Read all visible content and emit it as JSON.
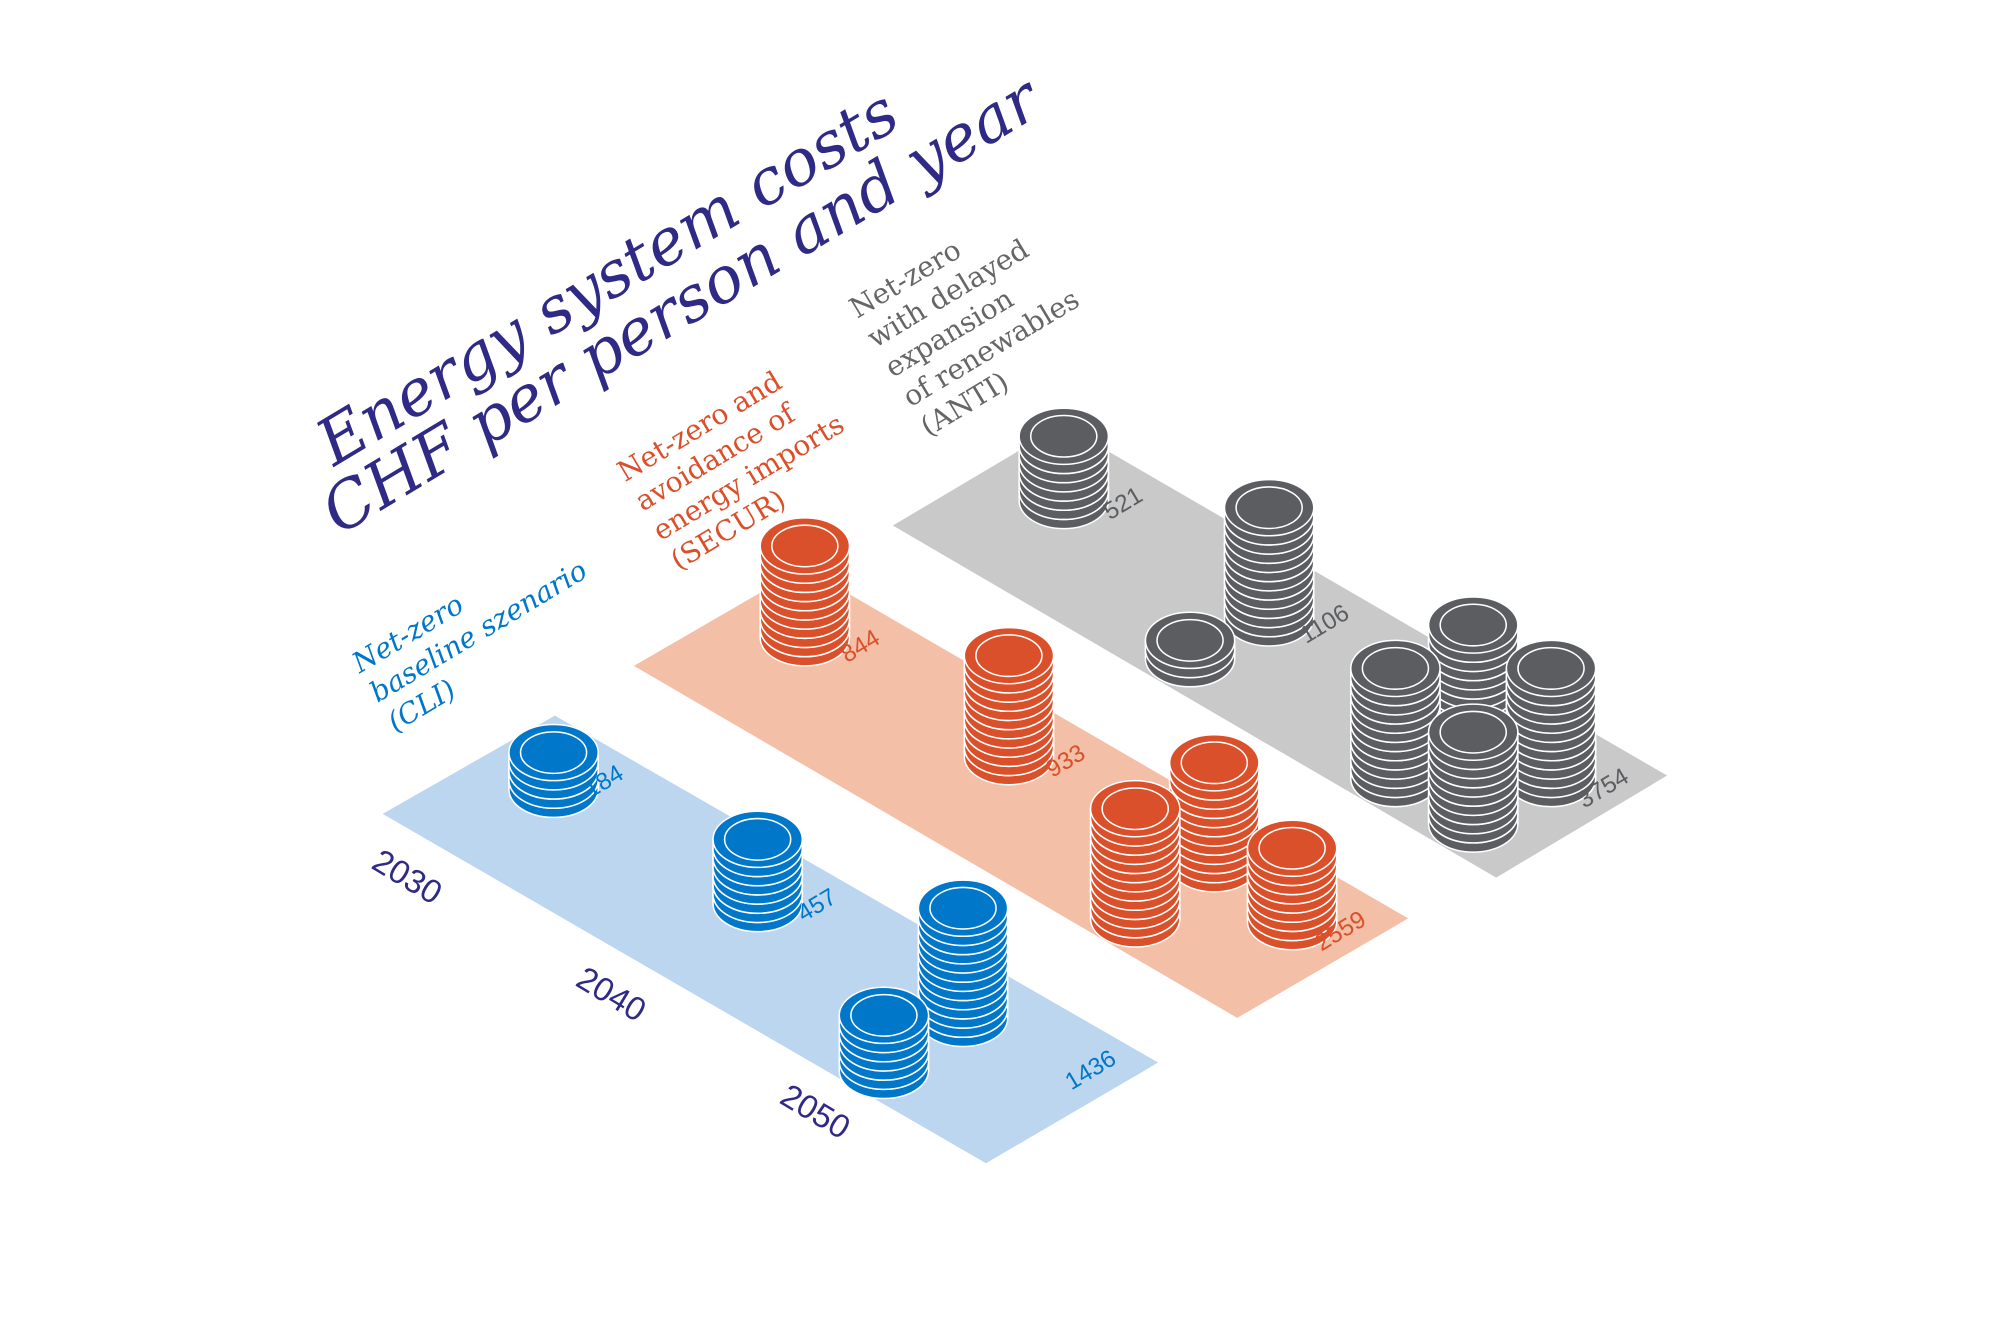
{
  "chart_data": {
    "type": "bar",
    "title": "Energy system costs",
    "subtitle": "CHF per person and year",
    "categories": [
      "2030",
      "2040",
      "2050"
    ],
    "series": [
      {
        "name": "Net-zero baseline szenario (CLI)",
        "label_lines": [
          "Net-zero",
          "baseline szenario",
          "(CLI)"
        ],
        "values": [
          184,
          457,
          1436
        ],
        "color": "#0077c8",
        "band_color": "#bdd6f0"
      },
      {
        "name": "Net-zero and avoidance of energy imports (SECUR)",
        "label_lines": [
          "Net-zero and",
          "avoidance of",
          "energy imports",
          "(SECUR)"
        ],
        "values": [
          844,
          933,
          2559
        ],
        "color": "#d9502a",
        "band_color": "#f3bfa6"
      },
      {
        "name": "Net-zero with delayed expansion of renewables (ANTI)",
        "label_lines": [
          "Net-zero",
          "with delayed",
          "expansion",
          "of renewables",
          "(ANTI)"
        ],
        "values": [
          521,
          1106,
          3754
        ],
        "color": "#5b5d61",
        "band_color": "#c9c9c9"
      }
    ],
    "encoding": "stacks of coins",
    "title_color": "#2e2a85",
    "grid": false,
    "legend": "none"
  }
}
